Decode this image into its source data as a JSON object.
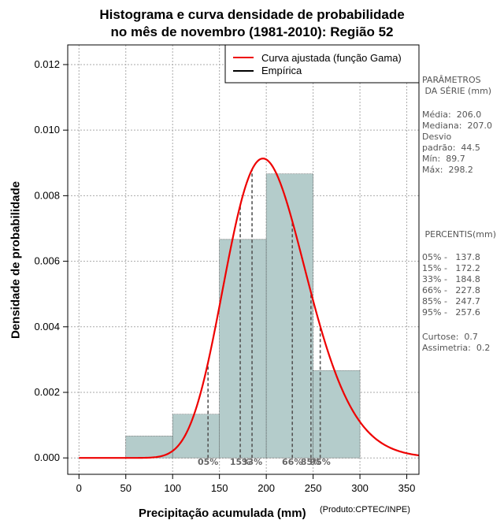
{
  "title_line1": "Histograma e curva densidade de probabilidade",
  "title_line2": "no mês de novembro (1981-2010): Região 52",
  "credit": "(Produto:CPTEC/INPE)",
  "colors": {
    "bar": "#b4cccb",
    "curve": "#ee0000",
    "grid": "#aaaaaa",
    "percentile": "#555555"
  },
  "chart_data": {
    "type": "bar",
    "xlabel": "Precipitação acumulada (mm)",
    "ylabel": "Densidade de probabilidade",
    "xlim": [
      -12,
      363
    ],
    "ylim": [
      -0.0005,
      0.0126
    ],
    "x_ticks": [
      0,
      50,
      100,
      150,
      200,
      250,
      300,
      350
    ],
    "y_ticks": [
      0.0,
      0.002,
      0.004,
      0.006,
      0.008,
      0.01,
      0.012
    ],
    "y_tick_labels": [
      "0.000",
      "0.002",
      "0.004",
      "0.006",
      "0.008",
      "0.010",
      "0.012"
    ],
    "bins": [
      {
        "from": 50,
        "to": 100,
        "density": 0.000667
      },
      {
        "from": 100,
        "to": 150,
        "density": 0.001333
      },
      {
        "from": 150,
        "to": 200,
        "density": 0.006667
      },
      {
        "from": 200,
        "to": 250,
        "density": 0.008667
      },
      {
        "from": 250,
        "to": 300,
        "density": 0.002667
      }
    ],
    "gamma_fit": {
      "name": "Curva ajustada (função Gama)",
      "shape": 21.4,
      "scale": 9.63,
      "x_from": 0,
      "x_to": 363
    },
    "empirical_label": "Empírica",
    "percentile_lines": [
      {
        "label": "05%",
        "x": 137.8
      },
      {
        "label": "15%",
        "x": 172.2
      },
      {
        "label": "33%",
        "x": 184.8
      },
      {
        "label": "66%",
        "x": 227.8
      },
      {
        "label": "85%",
        "x": 247.7
      },
      {
        "label": "95%",
        "x": 257.6
      }
    ]
  },
  "stats": {
    "header1": "PARÂMETROS",
    "header2": " DA SÉRIE (mm)",
    "lines": [
      "Média:  206.0",
      "Mediana:  207.0",
      "Desvio",
      "padrão:  44.5",
      "Mín:  89.7",
      "Máx:  298.2"
    ]
  },
  "percentis": {
    "header": " PERCENTIS(mm)",
    "lines": [
      "05% -   137.8",
      "15% -   172.2",
      "33% -   184.8",
      "66% -   227.8",
      "85% -   247.7",
      "95% -   257.6"
    ],
    "curtose": "Curtose:  0.7",
    "assimetria": "Assimetria:  0.2"
  }
}
